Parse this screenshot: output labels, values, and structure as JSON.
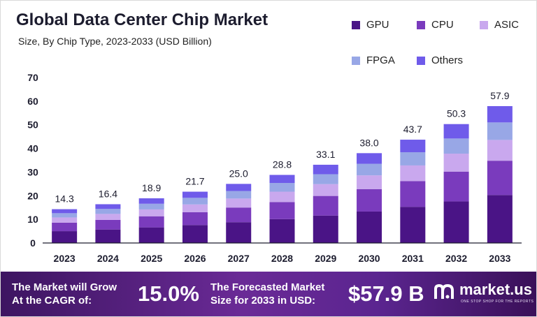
{
  "chart_data": {
    "type": "bar",
    "stacked": true,
    "title": "Global Data Center Chip Market",
    "subtitle": "Size, By Chip Type, 2023-2033 (USD Billion)",
    "categories": [
      "2023",
      "2024",
      "2025",
      "2026",
      "2027",
      "2028",
      "2029",
      "2030",
      "2031",
      "2032",
      "2033"
    ],
    "totals": [
      14.3,
      16.4,
      18.9,
      21.7,
      25.0,
      28.8,
      33.1,
      38.0,
      43.7,
      50.3,
      57.9
    ],
    "total_labels": [
      "14.3",
      "16.4",
      "18.9",
      "21.7",
      "25.0",
      "28.8",
      "33.1",
      "38.0",
      "43.7",
      "50.3",
      "57.9"
    ],
    "series": [
      {
        "name": "GPU",
        "color": "#4a1486",
        "values": [
          5.0,
          5.7,
          6.6,
          7.6,
          8.8,
          10.1,
          11.6,
          13.3,
          15.3,
          17.6,
          20.3
        ]
      },
      {
        "name": "CPU",
        "color": "#7a3bbd",
        "values": [
          3.6,
          4.1,
          4.7,
          5.4,
          6.2,
          7.2,
          8.3,
          9.5,
          10.9,
          12.6,
          14.5
        ]
      },
      {
        "name": "ASIC",
        "color": "#c9a8ee",
        "values": [
          2.2,
          2.5,
          2.9,
          3.3,
          3.8,
          4.4,
          5.0,
          5.8,
          6.6,
          7.6,
          8.8
        ]
      },
      {
        "name": "FPGA",
        "color": "#98a7e6",
        "values": [
          1.8,
          2.1,
          2.4,
          2.8,
          3.2,
          3.7,
          4.2,
          4.9,
          5.6,
          6.4,
          7.4
        ]
      },
      {
        "name": "Others",
        "color": "#6f5bea",
        "values": [
          1.7,
          2.0,
          2.3,
          2.6,
          3.0,
          3.4,
          4.0,
          4.5,
          5.3,
          6.1,
          6.9
        ]
      }
    ],
    "y_ticks": [
      "0",
      "10",
      "20",
      "30",
      "40",
      "50",
      "60",
      "70"
    ],
    "ylim": [
      0,
      70
    ],
    "grid": false,
    "legend_position": "top-right"
  },
  "footer": {
    "cagr_text": [
      "The Market will Grow",
      "At the CAGR of:"
    ],
    "cagr_value": "15.0%",
    "forecast_text": [
      "The Forecasted Market",
      "Size for 2033 in USD:"
    ],
    "forecast_value": "$57.9 B",
    "brand_name": "market.us",
    "brand_tagline": "ONE STOP SHOP FOR THE REPORTS"
  },
  "colors": {
    "footer_background": "#5b2590",
    "axis": "#1c1c2e"
  }
}
